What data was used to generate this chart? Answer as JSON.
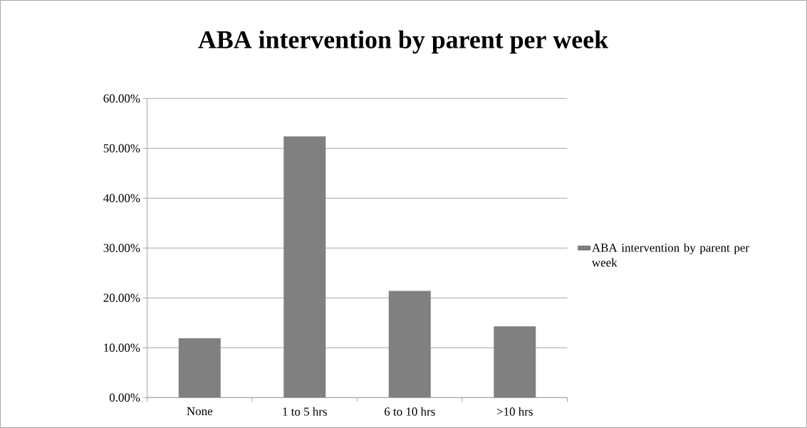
{
  "chart_data": {
    "type": "bar",
    "title": "ABA intervention by parent per week",
    "categories": [
      "None",
      "1 to 5 hrs",
      "6 to 10 hrs",
      ">10 hrs"
    ],
    "series": [
      {
        "name": "ABA intervention by parent per week",
        "color": "#808080",
        "values": [
          11.9,
          52.4,
          21.4,
          14.3
        ]
      }
    ],
    "ylim": [
      0,
      60
    ],
    "yticks": [
      {
        "value": 0,
        "label": "0.00%"
      },
      {
        "value": 10,
        "label": "10.00%"
      },
      {
        "value": 20,
        "label": "20.00%"
      },
      {
        "value": 30,
        "label": "30.00%"
      },
      {
        "value": 40,
        "label": "40.00%"
      },
      {
        "value": 50,
        "label": "50.00%"
      },
      {
        "value": 60,
        "label": "60.00%"
      }
    ],
    "grid": "y",
    "legend": "right"
  }
}
